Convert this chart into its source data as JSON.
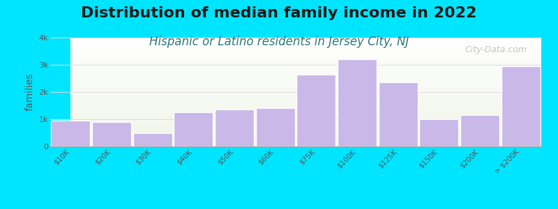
{
  "title": "Distribution of median family income in 2022",
  "subtitle": "Hispanic or Latino residents in Jersey City, NJ",
  "xlabel": "",
  "ylabel": "families",
  "categories": [
    "$10K",
    "$20K",
    "$30K",
    "$40K",
    "$50K",
    "$60K",
    "$75K",
    "$100K",
    "$125K",
    "$150K",
    "$200K",
    "> $200K"
  ],
  "values": [
    950,
    900,
    480,
    1250,
    1350,
    1400,
    2650,
    3200,
    2350,
    1000,
    1150,
    2950
  ],
  "bar_color": "#c9b8e8",
  "bar_edge_color": "#ffffff",
  "background_color": "#00e5ff",
  "plot_bg_top": "#f0f5e8",
  "plot_bg_bottom": "#ffffff",
  "title_color": "#1a1a1a",
  "subtitle_color": "#2a7a7a",
  "axis_color": "#aaaaaa",
  "tick_color": "#555555",
  "ylim": [
    0,
    4000
  ],
  "yticks": [
    0,
    1000,
    2000,
    3000,
    4000
  ],
  "ytick_labels": [
    "0",
    "1k",
    "2k",
    "3k",
    "4k"
  ],
  "title_fontsize": 16,
  "subtitle_fontsize": 12,
  "ylabel_fontsize": 10,
  "watermark": "City-Data.com"
}
